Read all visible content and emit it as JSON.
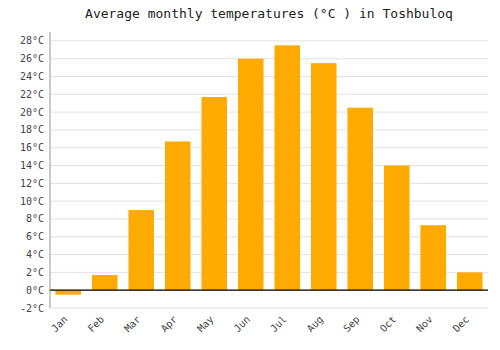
{
  "chart_data": {
    "type": "bar",
    "title": "Average monthly temperatures (°C ) in Toshbuloq",
    "categories": [
      "Jan",
      "Feb",
      "Mar",
      "Apr",
      "May",
      "Jun",
      "Jul",
      "Aug",
      "Sep",
      "Oct",
      "Nov",
      "Dec"
    ],
    "values": [
      -0.5,
      1.7,
      9.0,
      16.7,
      21.7,
      26.0,
      27.5,
      25.5,
      20.5,
      14.0,
      7.3,
      2.0
    ],
    "color": "#FFAA00",
    "ylim": [
      -2,
      29
    ],
    "yticks": [
      {
        "value": -2,
        "label": "-2°C"
      },
      {
        "value": 0,
        "label": "0°C"
      },
      {
        "value": 2,
        "label": "2°C"
      },
      {
        "value": 4,
        "label": "4°C"
      },
      {
        "value": 6,
        "label": "6°C"
      },
      {
        "value": 8,
        "label": "8°C"
      },
      {
        "value": 10,
        "label": "10°C"
      },
      {
        "value": 12,
        "label": "12°C"
      },
      {
        "value": 14,
        "label": "14°C"
      },
      {
        "value": 16,
        "label": "16°C"
      },
      {
        "value": 18,
        "label": "18°C"
      },
      {
        "value": 20,
        "label": "20°C"
      },
      {
        "value": 22,
        "label": "22°C"
      },
      {
        "value": 24,
        "label": "24°C"
      },
      {
        "value": 26,
        "label": "26°C"
      },
      {
        "value": 28,
        "label": "28°C"
      }
    ],
    "grid": true
  }
}
